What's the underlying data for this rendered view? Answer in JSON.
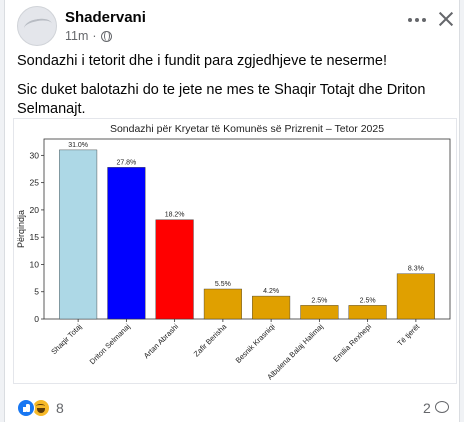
{
  "post": {
    "author": "Shadervani",
    "time": "11m",
    "separator": "·",
    "privacy_icon": "globe-icon",
    "paragraphs": [
      "Sondazhi i tetorit dhe i fundit para zgjedhjeve te neserme!",
      "Sic duket balotazhi do te jete ne mes te Shaqir Totajt dhe Driton Selmanajt."
    ]
  },
  "chart_data": {
    "type": "bar",
    "title": "Sondazhi për Kryetar të Komunës së Prizrenit – Tetor 2025",
    "ylabel": "Përqindja",
    "xlabel": "",
    "ylim": [
      0,
      33
    ],
    "yticks": [
      0,
      5,
      10,
      15,
      20,
      25,
      30
    ],
    "categories": [
      "Shaqir Totaj",
      "Driton Selmanaj",
      "Artan Abrashi",
      "Zafir Berisha",
      "Besnik Krasniqi",
      "Albulena Balaj Halimaj",
      "Emilia Rexhepi",
      "Të tjerët"
    ],
    "values": [
      31.0,
      27.8,
      18.2,
      5.5,
      4.2,
      2.5,
      2.5,
      8.3
    ],
    "value_labels": [
      "31.0%",
      "27.8%",
      "18.2%",
      "5.5%",
      "4.2%",
      "2.5%",
      "2.5%",
      "8.3%"
    ],
    "colors": [
      "#add8e6",
      "#0000ff",
      "#ff0000",
      "#e0a000",
      "#e0a000",
      "#e0a000",
      "#e0a000",
      "#e0a000"
    ],
    "grid": false,
    "legend": "none"
  },
  "footer": {
    "reactions_count": "8",
    "comments_count": "2",
    "reaction_icons": [
      "like-icon",
      "haha-icon"
    ],
    "comment_icon": "comment-icon"
  },
  "colors": {
    "background": "#f0f2f5",
    "secondary_text": "#65676b",
    "like_blue": "#1877f2"
  }
}
